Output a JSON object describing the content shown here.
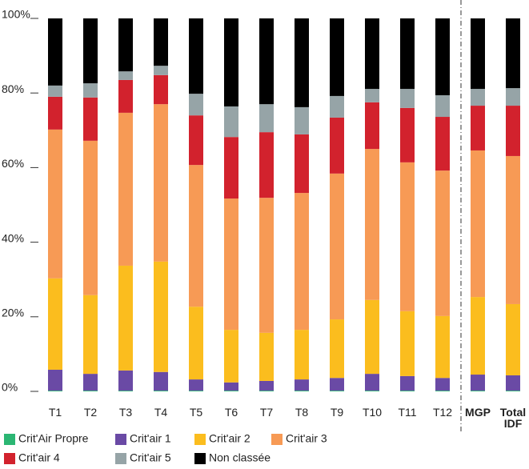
{
  "chart_data": {
    "type": "stacked_bar",
    "categories": [
      "T1",
      "T2",
      "T3",
      "T4",
      "T5",
      "T6",
      "T7",
      "T8",
      "T9",
      "T10",
      "T11",
      "T12",
      "MGP",
      "Total IDF"
    ],
    "series": [
      {
        "name": "Crit'Air Propre",
        "color": "#2bb673",
        "values": [
          0.2,
          0.2,
          0.2,
          0.2,
          0.2,
          0.2,
          0.2,
          0.2,
          0.2,
          0.2,
          0.2,
          0.2,
          0.2,
          0.2
        ]
      },
      {
        "name": "Crit'air 1",
        "color": "#6a4aa5",
        "values": [
          5.6,
          4.5,
          5.4,
          5,
          3,
          2.2,
          2.6,
          3,
          3.4,
          4.5,
          3.9,
          3.4,
          4.3,
          4.1
        ]
      },
      {
        "name": "Crit'air 2",
        "color": "#fbbd1e",
        "values": [
          24.5,
          21.1,
          28.1,
          29.6,
          19.5,
          14.1,
          12.9,
          13.3,
          15.7,
          19.8,
          17.4,
          16.6,
          20.8,
          19.1
        ]
      },
      {
        "name": "Crit'air 3",
        "color": "#f79a55",
        "values": [
          39.9,
          41.4,
          41,
          42.2,
          38,
          35.2,
          36.2,
          36.7,
          39.1,
          40.5,
          39.9,
          39,
          39.3,
          39.7
        ]
      },
      {
        "name": "Crit'air 4",
        "color": "#d2222d",
        "values": [
          8.8,
          11.6,
          8.8,
          7.8,
          13.3,
          16.5,
          17.6,
          15.7,
          15,
          12.5,
          14.6,
          14.4,
          12,
          13.5
        ]
      },
      {
        "name": "Crit'air 5",
        "color": "#96a4a7",
        "values": [
          3,
          3.8,
          2.3,
          2.5,
          5.8,
          8.2,
          7.5,
          7.3,
          5.8,
          3.6,
          5.1,
          5.8,
          4.5,
          4.7
        ]
      },
      {
        "name": "Non classée",
        "color": "#000000",
        "values": [
          18,
          17.4,
          14.2,
          12.7,
          20.2,
          23.6,
          23,
          23.8,
          20.8,
          18.9,
          18.9,
          20.6,
          18.9,
          18.7
        ]
      }
    ],
    "ylim": [
      0,
      100
    ],
    "yticks": [
      {
        "value": 0,
        "label": "0%"
      },
      {
        "value": 20,
        "label": "20%"
      },
      {
        "value": 40,
        "label": "40%"
      },
      {
        "value": 60,
        "label": "60%"
      },
      {
        "value": 80,
        "label": "80%"
      },
      {
        "value": 100,
        "label": "100%"
      }
    ]
  }
}
